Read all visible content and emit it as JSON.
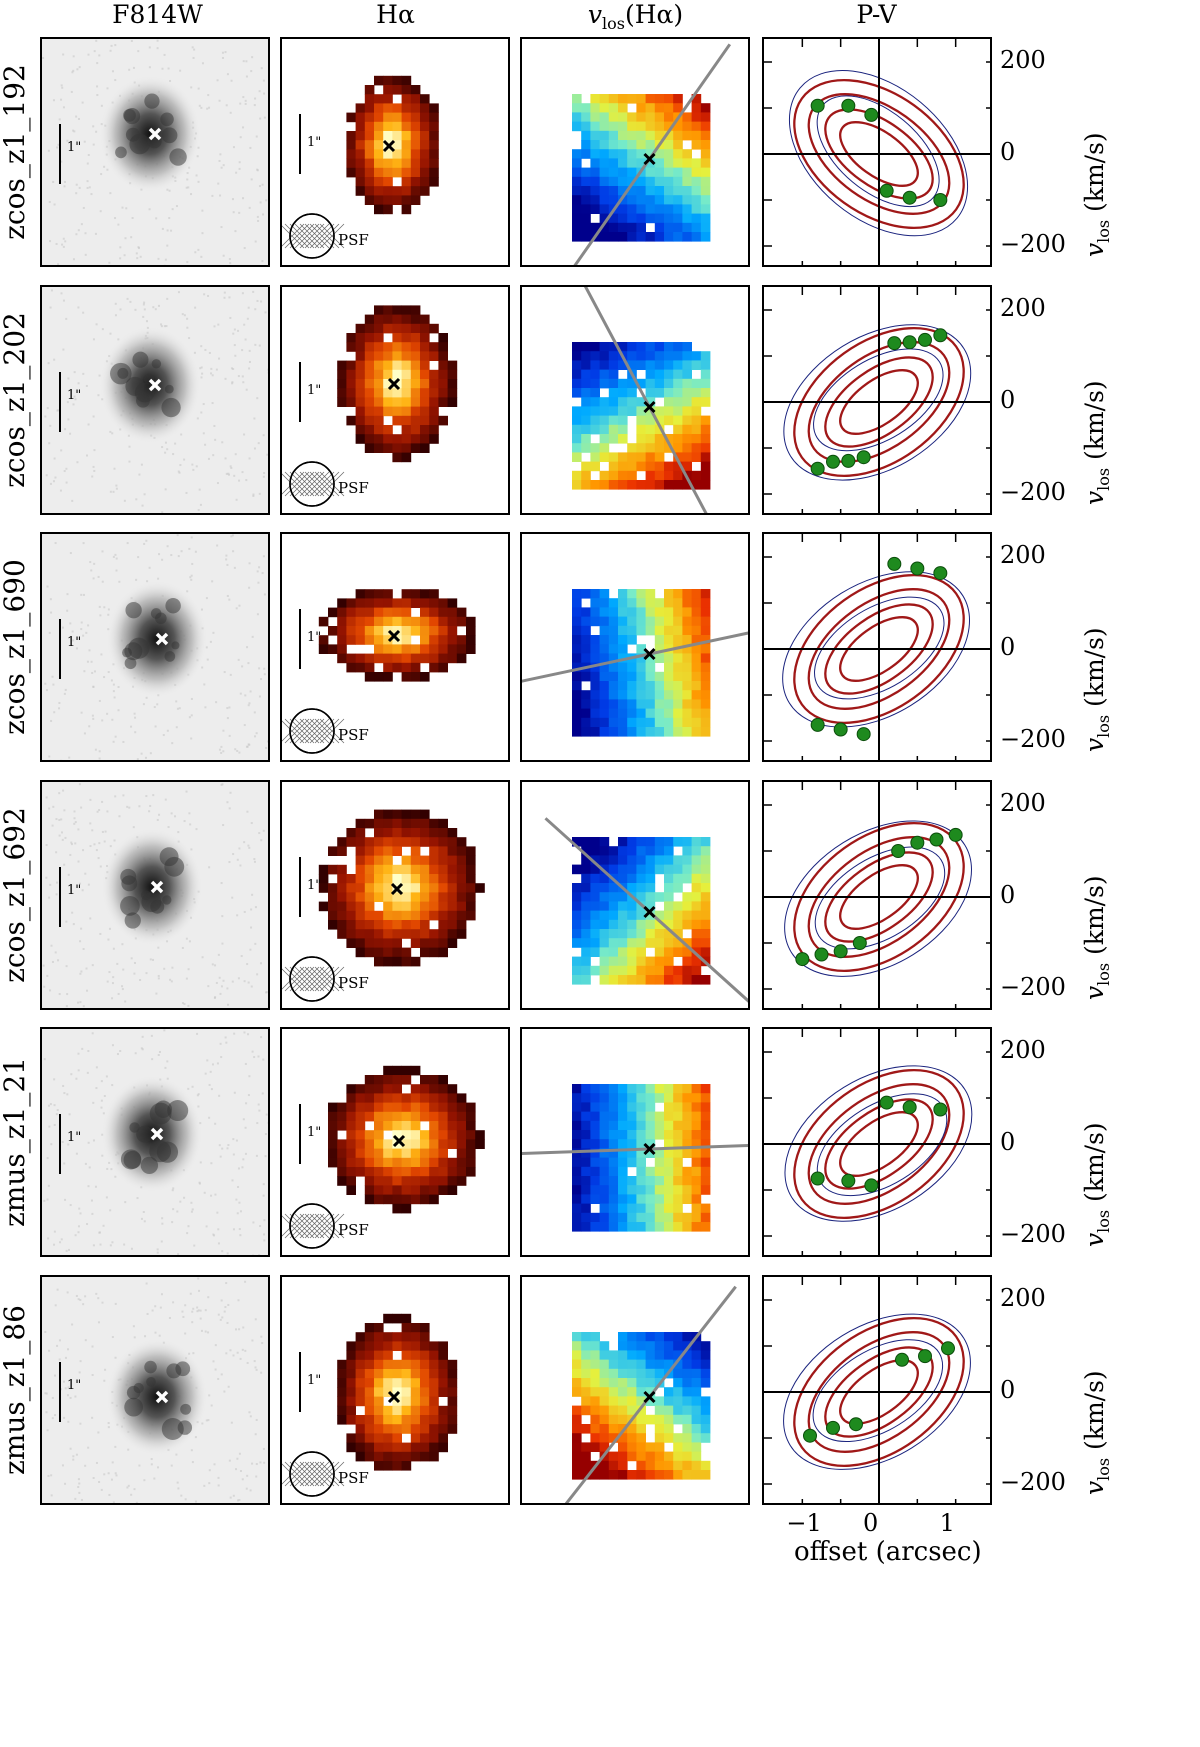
{
  "column_headers": {
    "f814w": "F814W",
    "halpha": "Hα",
    "vlos": "v",
    "vlos_sub": "los",
    "vlos_suffix": "(Hα)",
    "pv": "P-V"
  },
  "scale_bar_label": "1\"",
  "psf_label": "PSF",
  "axis": {
    "y_unit_main": "v",
    "y_unit_sub": "los",
    "y_unit_suffix": "(km/s)",
    "y_ticks": [
      "200",
      "0",
      "−200"
    ],
    "x_ticks": [
      "−1",
      "0",
      "1"
    ],
    "x_label": "offset (arcsec)"
  },
  "rows": [
    {
      "name": "zcos_z1_192"
    },
    {
      "name": "zcos_z1_202"
    },
    {
      "name": "zcos_z1_690"
    },
    {
      "name": "zcos_z1_692"
    },
    {
      "name": "zmus_z1_21"
    },
    {
      "name": "zmus_z1_86"
    }
  ],
  "chart_data": [
    {
      "type": "scatter",
      "galaxy": "zcos_z1_192",
      "xlim": [
        -1.5,
        1.5
      ],
      "ylim": [
        -250,
        250
      ],
      "x": [
        -0.8,
        -0.4,
        -0.1,
        0.1,
        0.4,
        0.8
      ],
      "y": [
        105,
        105,
        85,
        -80,
        -95,
        -100
      ]
    },
    {
      "type": "scatter",
      "galaxy": "zcos_z1_202",
      "xlim": [
        -1.5,
        1.5
      ],
      "ylim": [
        -250,
        250
      ],
      "x": [
        -0.8,
        -0.6,
        -0.4,
        -0.2,
        0.2,
        0.4,
        0.6,
        0.8
      ],
      "y": [
        -145,
        -130,
        -128,
        -120,
        128,
        130,
        135,
        145
      ]
    },
    {
      "type": "scatter",
      "galaxy": "zcos_z1_690",
      "xlim": [
        -1.5,
        1.5
      ],
      "ylim": [
        -250,
        250
      ],
      "x": [
        -0.8,
        -0.5,
        -0.2,
        0.2,
        0.5,
        0.8
      ],
      "y": [
        -165,
        -175,
        -185,
        185,
        175,
        165
      ]
    },
    {
      "type": "scatter",
      "galaxy": "zcos_z1_692",
      "xlim": [
        -1.5,
        1.5
      ],
      "ylim": [
        -250,
        250
      ],
      "x": [
        -1.0,
        -0.75,
        -0.5,
        -0.25,
        0.25,
        0.5,
        0.75,
        1.0
      ],
      "y": [
        -135,
        -125,
        -118,
        -100,
        100,
        118,
        125,
        135
      ]
    },
    {
      "type": "scatter",
      "galaxy": "zmus_z1_21",
      "xlim": [
        -1.5,
        1.5
      ],
      "ylim": [
        -250,
        250
      ],
      "x": [
        -0.8,
        -0.4,
        -0.1,
        0.1,
        0.4,
        0.8
      ],
      "y": [
        -75,
        -80,
        -90,
        90,
        80,
        75
      ]
    },
    {
      "type": "scatter",
      "galaxy": "zmus_z1_86",
      "xlim": [
        -1.5,
        1.5
      ],
      "ylim": [
        -250,
        250
      ],
      "x": [
        -0.9,
        -0.6,
        -0.3,
        0.3,
        0.6,
        0.9
      ],
      "y": [
        -95,
        -78,
        -70,
        70,
        78,
        95
      ]
    }
  ]
}
